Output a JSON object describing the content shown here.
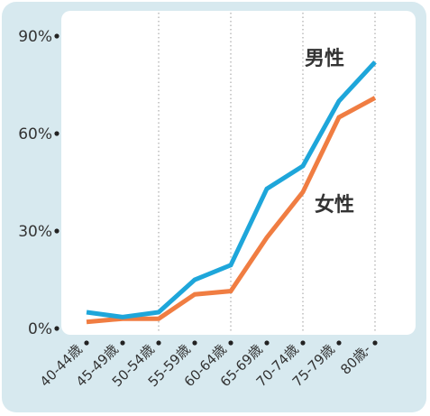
{
  "chart_data": {
    "type": "line",
    "categories": [
      "40-44歳",
      "45-49歳",
      "50-54歳",
      "55-59歳",
      "60-64歳",
      "65-69歳",
      "70-74歳",
      "75-79歳",
      "80歳-"
    ],
    "series": [
      {
        "name": "男性",
        "values": [
          5,
          3.5,
          5,
          15,
          19.5,
          43,
          50,
          70,
          82
        ]
      },
      {
        "name": "女性",
        "values": [
          2,
          3,
          3,
          10.5,
          11.5,
          28,
          42,
          65,
          71
        ]
      }
    ],
    "y_ticks": [
      "0%",
      "30%",
      "60%",
      "90%"
    ],
    "y_tick_values": [
      0,
      30,
      60,
      90
    ],
    "ylim": [
      0,
      90
    ],
    "grid": "vertical dotted",
    "legend": "inline labels next to lines",
    "colors": {
      "male": "#1ea6da",
      "female": "#f07d42",
      "outer_background": "#d7e9ef",
      "plot_background": "#ffffff",
      "text": "#333333"
    }
  }
}
